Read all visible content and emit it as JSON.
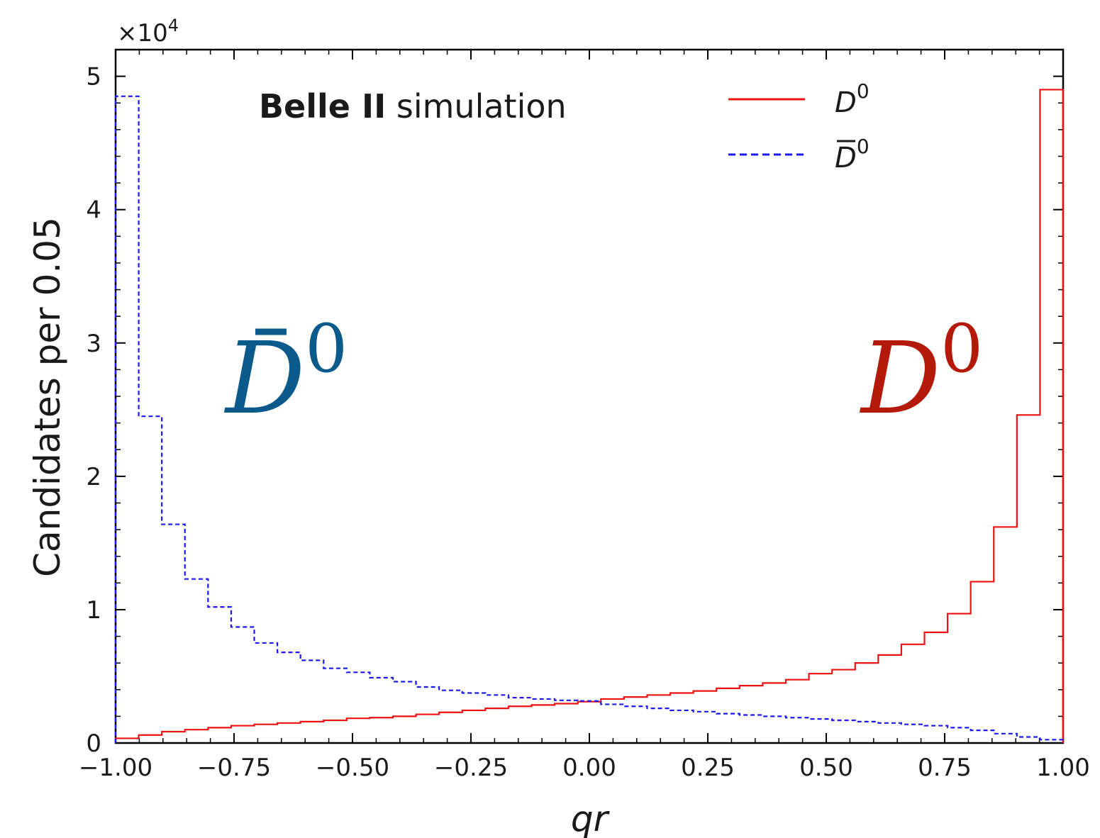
{
  "chart_data": {
    "type": "histogram",
    "annotation_bold": "Belle II",
    "annotation_rest": " simulation",
    "xlabel": "qr",
    "ylabel": "Candidates per 0.05",
    "y_multiplier": "×10",
    "y_multiplier_exp": "4",
    "xlim": [
      -1.0,
      1.0
    ],
    "ylim": [
      0,
      52000
    ],
    "x_ticks": [
      "-1.00",
      "-0.75",
      "-0.50",
      "-0.25",
      "0.00",
      "0.25",
      "0.50",
      "0.75",
      "1.00"
    ],
    "x_tick_labels": [
      "−1.00",
      "−0.75",
      "−0.50",
      "−0.25",
      "0.00",
      "0.25",
      "0.50",
      "0.75",
      "1.00"
    ],
    "y_ticks": [
      0,
      10000,
      20000,
      30000,
      40000,
      50000
    ],
    "y_tick_labels": [
      "0",
      "1",
      "2",
      "3",
      "4",
      "5"
    ],
    "bin_edges_start": -1.0,
    "bin_width": 0.05,
    "legend_position": "top-right",
    "big_label_left": {
      "base": "D",
      "sup": "0",
      "bar": true,
      "color": "#0a5a8c"
    },
    "big_label_right": {
      "base": "D",
      "sup": "0",
      "bar": false,
      "color": "#b41a0a"
    },
    "series": [
      {
        "name_base": "D",
        "name_sup": "0",
        "name_bar": false,
        "color": "#ee1111",
        "dash": "solid",
        "values": [
          350,
          600,
          850,
          1000,
          1150,
          1300,
          1400,
          1500,
          1600,
          1700,
          1850,
          1900,
          2000,
          2150,
          2300,
          2450,
          2600,
          2750,
          2850,
          2950,
          3100,
          3300,
          3450,
          3600,
          3750,
          3900,
          4100,
          4300,
          4500,
          4750,
          5200,
          5500,
          6000,
          6600,
          7400,
          8300,
          9700,
          12100,
          16200,
          24600,
          49000
        ]
      },
      {
        "name_base": "D",
        "name_sup": "0",
        "name_bar": true,
        "color": "#1a1aee",
        "dash": "dashed",
        "values": [
          48500,
          24500,
          16400,
          12300,
          10200,
          8700,
          7500,
          6800,
          6200,
          5600,
          5300,
          4900,
          4600,
          4200,
          3950,
          3750,
          3600,
          3400,
          3300,
          3200,
          3150,
          2900,
          2750,
          2600,
          2450,
          2350,
          2200,
          2100,
          2000,
          1900,
          1800,
          1700,
          1600,
          1500,
          1400,
          1300,
          1150,
          950,
          700,
          450,
          250
        ]
      }
    ]
  }
}
